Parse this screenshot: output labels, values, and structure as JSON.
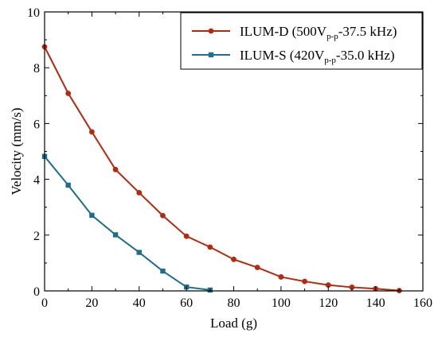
{
  "chart_data": {
    "type": "line",
    "title": "",
    "xlabel": "Load (g)",
    "ylabel": "Velocity (mm/s)",
    "xlim": [
      0,
      160
    ],
    "ylim": [
      0,
      10
    ],
    "xticks": [
      "0",
      "20",
      "40",
      "60",
      "80",
      "100",
      "120",
      "140",
      "160"
    ],
    "yticks": [
      "0",
      "2",
      "4",
      "6",
      "8",
      "10"
    ],
    "grid": false,
    "legend_position": "top-right",
    "series": [
      {
        "name": "ILUM-D (500V",
        "name_sub": "p-p",
        "name_suffix": "-37.5 kHz)",
        "color": "#b5290f",
        "marker": "circle",
        "x": [
          0,
          10,
          20,
          30,
          40,
          50,
          60,
          70,
          80,
          90,
          100,
          110,
          120,
          130,
          140,
          150
        ],
        "y": [
          8.75,
          7.08,
          5.7,
          4.35,
          3.52,
          2.7,
          1.96,
          1.57,
          1.13,
          0.84,
          0.5,
          0.34,
          0.21,
          0.13,
          0.08,
          0.01
        ]
      },
      {
        "name": "ILUM-S (420V",
        "name_sub": "p-p",
        "name_suffix": "-35.0 kHz)",
        "color": "#1f6e8c",
        "marker": "square",
        "x": [
          0,
          10,
          20,
          30,
          40,
          50,
          60,
          70
        ],
        "y": [
          4.82,
          3.79,
          2.71,
          2.01,
          1.38,
          0.71,
          0.14,
          0.03
        ]
      }
    ]
  }
}
